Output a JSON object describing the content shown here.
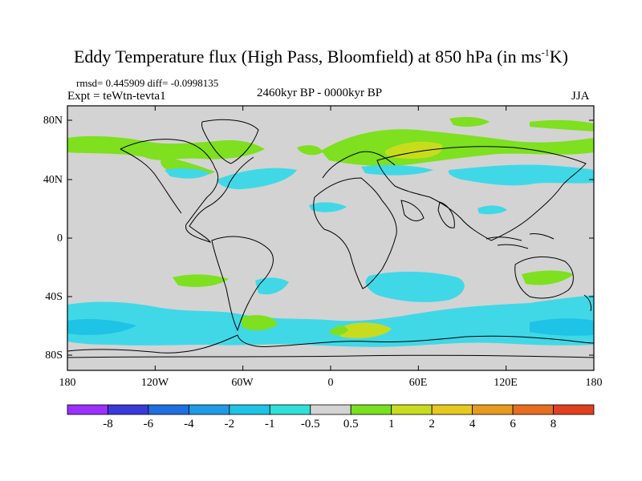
{
  "title": {
    "main": "Eddy Temperature flux (High Pass, Bloomfield) at 850 hPa (in ms",
    "sup": "-1",
    "tail": "K)"
  },
  "stats": "rmsd= 0.445909 diff= -0.0998135",
  "expt": "Expt = teWtn-tevta1",
  "period": "2460kyr BP - 0000kyr BP",
  "season": "JJA",
  "map": {
    "land_color": "#d3d3d3",
    "coast_color": "#000000",
    "y_ticks": [
      "80N",
      "40N",
      "0",
      "40S",
      "80S"
    ],
    "x_ticks": [
      "180",
      "120W",
      "60W",
      "0",
      "60E",
      "120E",
      "180"
    ]
  },
  "colorbar": {
    "colors": [
      "#9b30ff",
      "#3a3ad8",
      "#1e6fe0",
      "#1e9be6",
      "#1ec3e6",
      "#30e0d8",
      "#d3d3d3",
      "#78e01e",
      "#c8dc1e",
      "#e6c81e",
      "#e69b1e",
      "#e66e1e",
      "#e0401e"
    ],
    "labels": [
      "-8",
      "-6",
      "-4",
      "-2",
      "-1",
      "-0.5",
      "0.5",
      "1",
      "2",
      "4",
      "6",
      "8"
    ]
  },
  "palette": {
    "cyan": "#40d8e6",
    "light_blue": "#1ec3e6",
    "green": "#7ee01e",
    "yellow_green": "#c8dc1e",
    "gray": "#d3d3d3"
  }
}
